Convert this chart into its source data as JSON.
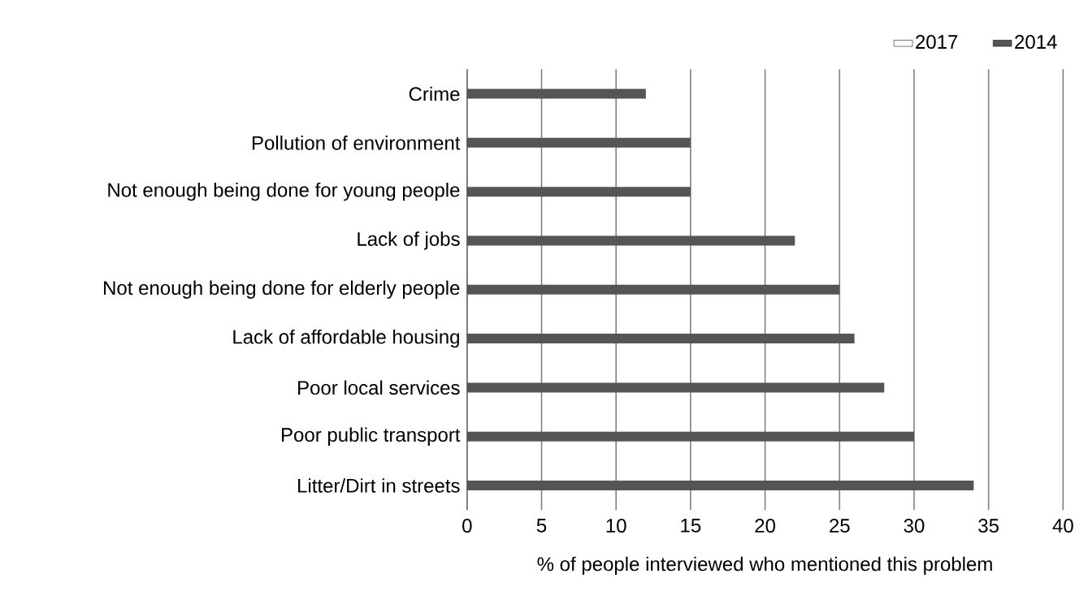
{
  "chart_data": {
    "type": "bar",
    "orientation": "horizontal",
    "xlabel": "% of people interviewed who mentioned this problem",
    "categories": [
      "Crime",
      "Pollution of environment",
      "Not enough being done for young people",
      "Lack of jobs",
      "Not enough being done for elderly people",
      "Lack of affordable housing",
      "Poor local services",
      "Poor public transport",
      "Litter/Dirt in streets"
    ],
    "series": [
      {
        "name": "2017",
        "color": "#ffffff",
        "values": [
          null,
          null,
          null,
          null,
          null,
          null,
          null,
          null,
          null
        ]
      },
      {
        "name": "2014",
        "color": "#555555",
        "values": [
          12,
          15,
          15,
          22,
          25,
          26,
          28,
          30,
          34
        ]
      }
    ],
    "xlim": [
      0,
      40
    ],
    "xticks": [
      0,
      5,
      10,
      15,
      20,
      25,
      30,
      35,
      40
    ],
    "grid": "x",
    "legend": "top right"
  }
}
